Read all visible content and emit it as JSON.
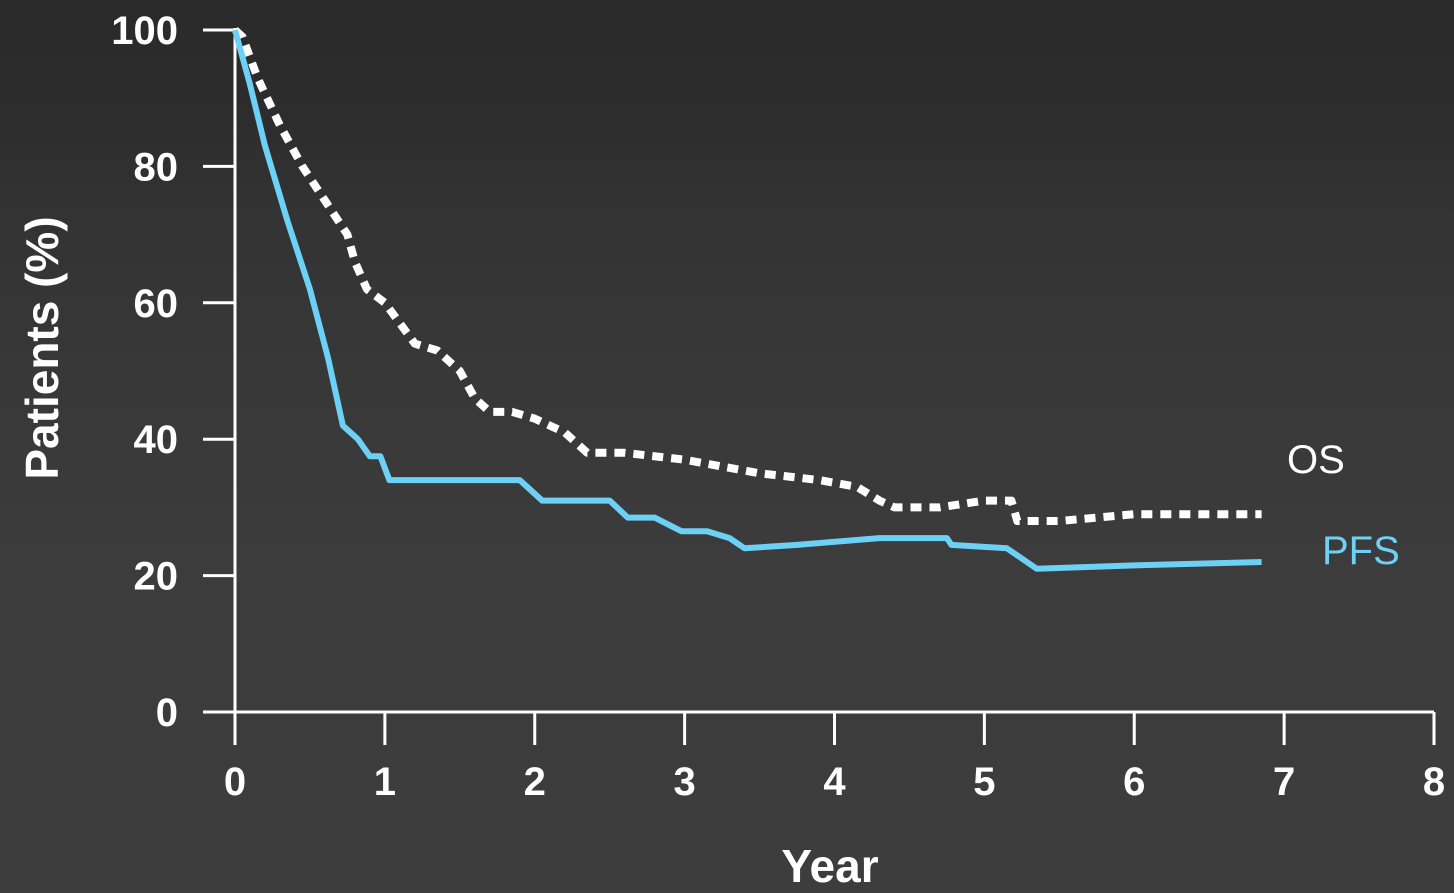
{
  "chart_data": {
    "type": "line",
    "xlabel": "Year",
    "ylabel": "Patients (%)",
    "xlim": [
      0,
      8
    ],
    "ylim": [
      0,
      100
    ],
    "xticks": [
      "0",
      "1",
      "2",
      "3",
      "4",
      "5",
      "6",
      "7",
      "8"
    ],
    "yticks": [
      "0",
      "20",
      "40",
      "60",
      "80",
      "100"
    ],
    "grid": false,
    "series": [
      {
        "name": "OS",
        "style": "dotted",
        "color": "#ffffff",
        "x": [
          0,
          0.05,
          0.15,
          0.3,
          0.45,
          0.6,
          0.75,
          0.8,
          0.88,
          1.0,
          1.1,
          1.2,
          1.35,
          1.5,
          1.6,
          1.7,
          1.85,
          2.0,
          2.2,
          2.35,
          2.6,
          3.0,
          3.5,
          3.9,
          4.15,
          4.3,
          4.4,
          4.7,
          5.0,
          5.18,
          5.22,
          5.5,
          6.0,
          6.5,
          6.85
        ],
        "y": [
          100,
          99,
          93,
          86,
          80,
          75,
          70,
          66,
          62,
          60,
          57,
          54,
          53,
          50,
          46,
          44,
          44,
          43,
          41,
          38,
          38,
          37,
          35,
          34,
          33,
          31,
          30,
          30,
          31,
          31,
          28,
          28,
          29,
          29,
          29
        ]
      },
      {
        "name": "PFS",
        "style": "solid",
        "color": "#6dd0f5",
        "x": [
          0,
          0.1,
          0.2,
          0.35,
          0.5,
          0.62,
          0.72,
          0.82,
          0.9,
          0.97,
          1.03,
          1.5,
          1.9,
          2.05,
          2.5,
          2.62,
          2.8,
          2.98,
          3.15,
          3.3,
          3.4,
          3.75,
          4.3,
          4.75,
          4.78,
          5.15,
          5.35,
          6.0,
          6.85
        ],
        "y": [
          100,
          92,
          83,
          72,
          62,
          52,
          42,
          40,
          37.5,
          37.5,
          34,
          34,
          34,
          31,
          31,
          28.5,
          28.5,
          26.5,
          26.5,
          25.5,
          24,
          24.5,
          25.5,
          25.5,
          24.5,
          24,
          21,
          21.5,
          22
        ]
      }
    ]
  }
}
